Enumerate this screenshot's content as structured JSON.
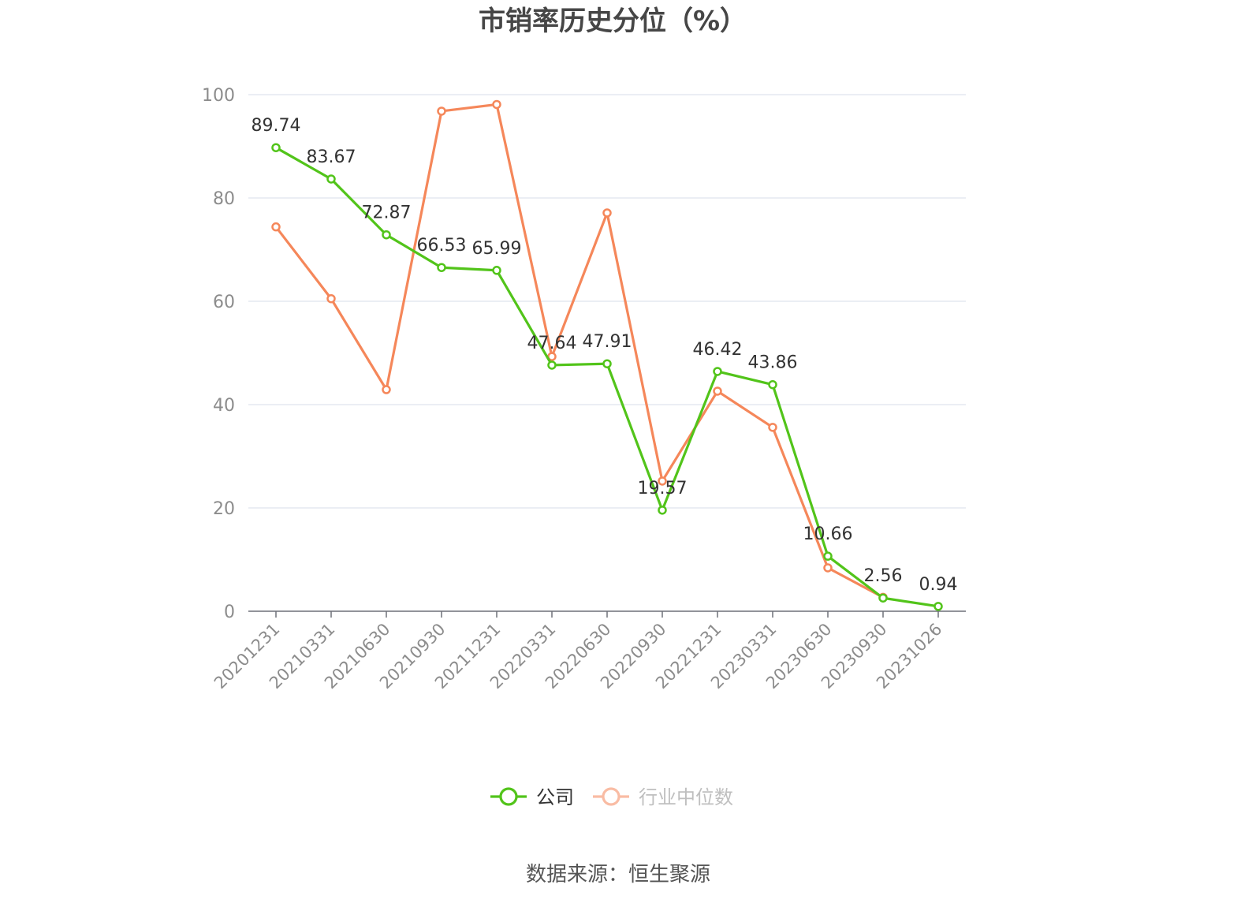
{
  "chart_data": {
    "type": "line",
    "title": "市销率历史分位（%）",
    "categories": [
      "20201231",
      "20210331",
      "20210630",
      "20210930",
      "20211231",
      "20220331",
      "20220630",
      "20220930",
      "20221231",
      "20230331",
      "20230630",
      "20230930",
      "20231026"
    ],
    "series": [
      {
        "name": "公司",
        "color": "#52c41a",
        "values": [
          89.74,
          83.67,
          72.87,
          66.53,
          65.99,
          47.64,
          47.91,
          19.57,
          46.42,
          43.86,
          10.66,
          2.56,
          0.94
        ],
        "labels": [
          "89.74",
          "83.67",
          "72.87",
          "66.53",
          "65.99",
          "47.64",
          "47.91",
          "19.57",
          "46.42",
          "43.86",
          "10.66",
          "2.56",
          "0.94"
        ]
      },
      {
        "name": "行业中位数",
        "color": "#f5875a",
        "values": [
          74.4,
          60.5,
          42.9,
          96.8,
          98.1,
          49.3,
          77.1,
          25.2,
          42.6,
          35.6,
          8.4,
          2.7,
          null
        ]
      }
    ],
    "yticks": [
      "0",
      "20",
      "40",
      "60",
      "80",
      "100"
    ],
    "ylim": [
      0,
      100
    ],
    "grid": true,
    "legend_position": "bottom-center",
    "source": "数据来源：恒生聚源"
  }
}
